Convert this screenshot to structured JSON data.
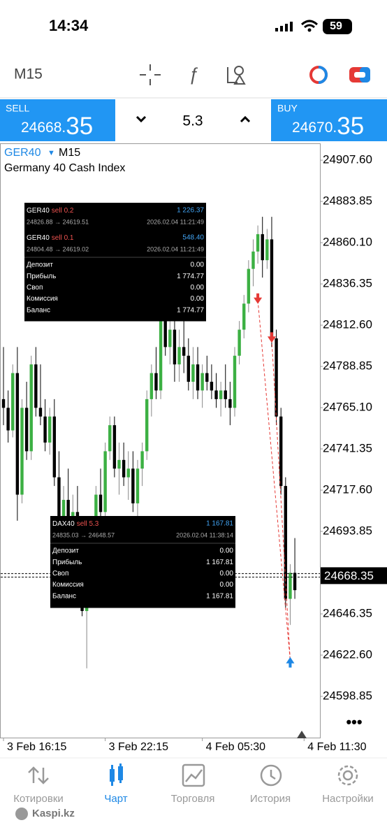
{
  "status": {
    "time": "14:34",
    "battery": "59"
  },
  "toolbar": {
    "timeframe": "M15"
  },
  "trade_bar": {
    "sell_label": "SELL",
    "sell_main": "24668.",
    "sell_tail": "35",
    "volume": "5.3",
    "buy_label": "BUY",
    "buy_main": "24670.",
    "buy_tail": "35"
  },
  "chart_data": {
    "type": "candlestick",
    "title": "GER40",
    "timeframe": "M15",
    "subtitle": "Germany 40 Cash Index",
    "up_color": "#3cb043",
    "down_color": "#000000",
    "ylim": [
      24575.1,
      24917.3
    ],
    "yticks": [
      {
        "value": 24907.6,
        "label": "24907.60"
      },
      24883.85,
      {
        "value": 24860.1,
        "label": "24860.10"
      },
      24836.35,
      {
        "value": 24812.6,
        "label": "24812.60"
      },
      24788.85,
      {
        "value": 24765.1,
        "label": "24765.10"
      },
      24741.35,
      {
        "value": 24717.6,
        "label": "24717.60"
      },
      24693.85,
      24646.35,
      {
        "value": 24622.6,
        "label": "24622.60"
      },
      24598.85
    ],
    "xticks": [
      {
        "value": 0,
        "label": "3 Feb 16:15"
      },
      {
        "value": 22,
        "label": "3 Feb 22:15"
      },
      {
        "value": 43,
        "label": "4 Feb 05:30"
      },
      {
        "value": 65,
        "label": "4 Feb 11:30"
      }
    ],
    "last_price": 24668.35,
    "candles": [
      {
        "o": 24770,
        "h": 24800,
        "l": 24755,
        "c": 24765
      },
      {
        "o": 24765,
        "h": 24775,
        "l": 24745,
        "c": 24752
      },
      {
        "o": 24752,
        "h": 24790,
        "l": 24748,
        "c": 24785
      },
      {
        "o": 24785,
        "h": 24800,
        "l": 24700,
        "c": 24715
      },
      {
        "o": 24715,
        "h": 24770,
        "l": 24710,
        "c": 24765
      },
      {
        "o": 24765,
        "h": 24780,
        "l": 24735,
        "c": 24740
      },
      {
        "o": 24740,
        "h": 24795,
        "l": 24735,
        "c": 24790
      },
      {
        "o": 24790,
        "h": 24800,
        "l": 24760,
        "c": 24765
      },
      {
        "o": 24765,
        "h": 24790,
        "l": 24755,
        "c": 24760
      },
      {
        "o": 24760,
        "h": 24770,
        "l": 24740,
        "c": 24745
      },
      {
        "o": 24745,
        "h": 24765,
        "l": 24738,
        "c": 24760
      },
      {
        "o": 24760,
        "h": 24770,
        "l": 24720,
        "c": 24725
      },
      {
        "o": 24725,
        "h": 24740,
        "l": 24690,
        "c": 24700
      },
      {
        "o": 24700,
        "h": 24720,
        "l": 24680,
        "c": 24712
      },
      {
        "o": 24712,
        "h": 24730,
        "l": 24690,
        "c": 24695
      },
      {
        "o": 24695,
        "h": 24715,
        "l": 24670,
        "c": 24705
      },
      {
        "o": 24705,
        "h": 24720,
        "l": 24680,
        "c": 24690
      },
      {
        "o": 24690,
        "h": 24700,
        "l": 24645,
        "c": 24648
      },
      {
        "o": 24648,
        "h": 24665,
        "l": 24615,
        "c": 24660
      },
      {
        "o": 24660,
        "h": 24700,
        "l": 24655,
        "c": 24695
      },
      {
        "o": 24695,
        "h": 24720,
        "l": 24690,
        "c": 24715
      },
      {
        "o": 24715,
        "h": 24730,
        "l": 24700,
        "c": 24705
      },
      {
        "o": 24705,
        "h": 24745,
        "l": 24700,
        "c": 24740
      },
      {
        "o": 24740,
        "h": 24760,
        "l": 24735,
        "c": 24755
      },
      {
        "o": 24755,
        "h": 24760,
        "l": 24725,
        "c": 24730
      },
      {
        "o": 24730,
        "h": 24745,
        "l": 24715,
        "c": 24735
      },
      {
        "o": 24735,
        "h": 24745,
        "l": 24720,
        "c": 24725
      },
      {
        "o": 24725,
        "h": 24740,
        "l": 24712,
        "c": 24730
      },
      {
        "o": 24730,
        "h": 24740,
        "l": 24705,
        "c": 24710
      },
      {
        "o": 24710,
        "h": 24735,
        "l": 24700,
        "c": 24730
      },
      {
        "o": 24730,
        "h": 24745,
        "l": 24720,
        "c": 24740
      },
      {
        "o": 24740,
        "h": 24775,
        "l": 24735,
        "c": 24770
      },
      {
        "o": 24770,
        "h": 24790,
        "l": 24760,
        "c": 24785
      },
      {
        "o": 24785,
        "h": 24800,
        "l": 24770,
        "c": 24775
      },
      {
        "o": 24775,
        "h": 24820,
        "l": 24770,
        "c": 24815
      },
      {
        "o": 24815,
        "h": 24830,
        "l": 24795,
        "c": 24800
      },
      {
        "o": 24800,
        "h": 24820,
        "l": 24790,
        "c": 24810
      },
      {
        "o": 24810,
        "h": 24825,
        "l": 24780,
        "c": 24790
      },
      {
        "o": 24790,
        "h": 24810,
        "l": 24780,
        "c": 24800
      },
      {
        "o": 24800,
        "h": 24815,
        "l": 24785,
        "c": 24795
      },
      {
        "o": 24795,
        "h": 24805,
        "l": 24775,
        "c": 24780
      },
      {
        "o": 24780,
        "h": 24800,
        "l": 24770,
        "c": 24790
      },
      {
        "o": 24790,
        "h": 24800,
        "l": 24770,
        "c": 24775
      },
      {
        "o": 24775,
        "h": 24790,
        "l": 24765,
        "c": 24785
      },
      {
        "o": 24785,
        "h": 24795,
        "l": 24775,
        "c": 24780
      },
      {
        "o": 24780,
        "h": 24790,
        "l": 24770,
        "c": 24775
      },
      {
        "o": 24775,
        "h": 24785,
        "l": 24765,
        "c": 24770
      },
      {
        "o": 24770,
        "h": 24780,
        "l": 24760,
        "c": 24775
      },
      {
        "o": 24775,
        "h": 24790,
        "l": 24765,
        "c": 24770
      },
      {
        "o": 24770,
        "h": 24780,
        "l": 24755,
        "c": 24765
      },
      {
        "o": 24765,
        "h": 24800,
        "l": 24760,
        "c": 24795
      },
      {
        "o": 24795,
        "h": 24815,
        "l": 24790,
        "c": 24810
      },
      {
        "o": 24810,
        "h": 24830,
        "l": 24805,
        "c": 24825
      },
      {
        "o": 24825,
        "h": 24850,
        "l": 24820,
        "c": 24845
      },
      {
        "o": 24845,
        "h": 24862,
        "l": 24835,
        "c": 24855
      },
      {
        "o": 24855,
        "h": 24870,
        "l": 24848,
        "c": 24865
      },
      {
        "o": 24865,
        "h": 24875,
        "l": 24840,
        "c": 24850
      },
      {
        "o": 24850,
        "h": 24868,
        "l": 24845,
        "c": 24862
      },
      {
        "o": 24862,
        "h": 24875,
        "l": 24800,
        "c": 24805
      },
      {
        "o": 24805,
        "h": 24810,
        "l": 24755,
        "c": 24760
      },
      {
        "o": 24760,
        "h": 24765,
        "l": 24715,
        "c": 24720
      },
      {
        "o": 24720,
        "h": 24725,
        "l": 24650,
        "c": 24655
      },
      {
        "o": 24655,
        "h": 24675,
        "l": 24640,
        "c": 24670
      },
      {
        "o": 24670,
        "h": 24690,
        "l": 24655,
        "c": 24660
      }
    ],
    "markers": [
      {
        "side": "sell",
        "candle": 55,
        "price": 24826.88,
        "color": "#e53935"
      },
      {
        "side": "sell",
        "candle": 58,
        "price": 24804.48,
        "color": "#e53935"
      },
      {
        "side": "buy",
        "candle": 62,
        "price": 24619.51,
        "color": "#1e88e5"
      }
    ]
  },
  "popup_ger": {
    "positions": [
      {
        "symbol": "GER40",
        "side": "sell 0.2",
        "profit": "1 226.37",
        "prices": "24826.88 → 24619.51",
        "time": "2026.02.04 11:21:49"
      },
      {
        "symbol": "GER40",
        "side": "sell 0.1",
        "profit": "548.40",
        "prices": "24804.48 → 24619.02",
        "time": "2026.02.04 11:21:49"
      }
    ],
    "rows": [
      [
        "Депозит",
        "0.00"
      ],
      [
        "Прибыль",
        "1 774.77"
      ],
      [
        "Своп",
        "0.00"
      ],
      [
        "Комиссия",
        "0.00"
      ],
      [
        "Баланс",
        "1 774.77"
      ]
    ]
  },
  "popup_dax": {
    "positions": [
      {
        "symbol": "DAX40",
        "side": "sell 5.3",
        "profit": "1 167.81",
        "prices": "24835.03 → 24648.57",
        "time": "2026.02.04 11:38:14"
      }
    ],
    "rows": [
      [
        "Депозит",
        "0.00"
      ],
      [
        "Прибыль",
        "1 167.81"
      ],
      [
        "Своп",
        "0.00"
      ],
      [
        "Комиссия",
        "0.00"
      ],
      [
        "Баланс",
        "1 167.81"
      ]
    ]
  },
  "nav": [
    "Котировки",
    "Чарт",
    "Торговля",
    "История",
    "Настройки"
  ],
  "watermark": "Kaspi.kz"
}
